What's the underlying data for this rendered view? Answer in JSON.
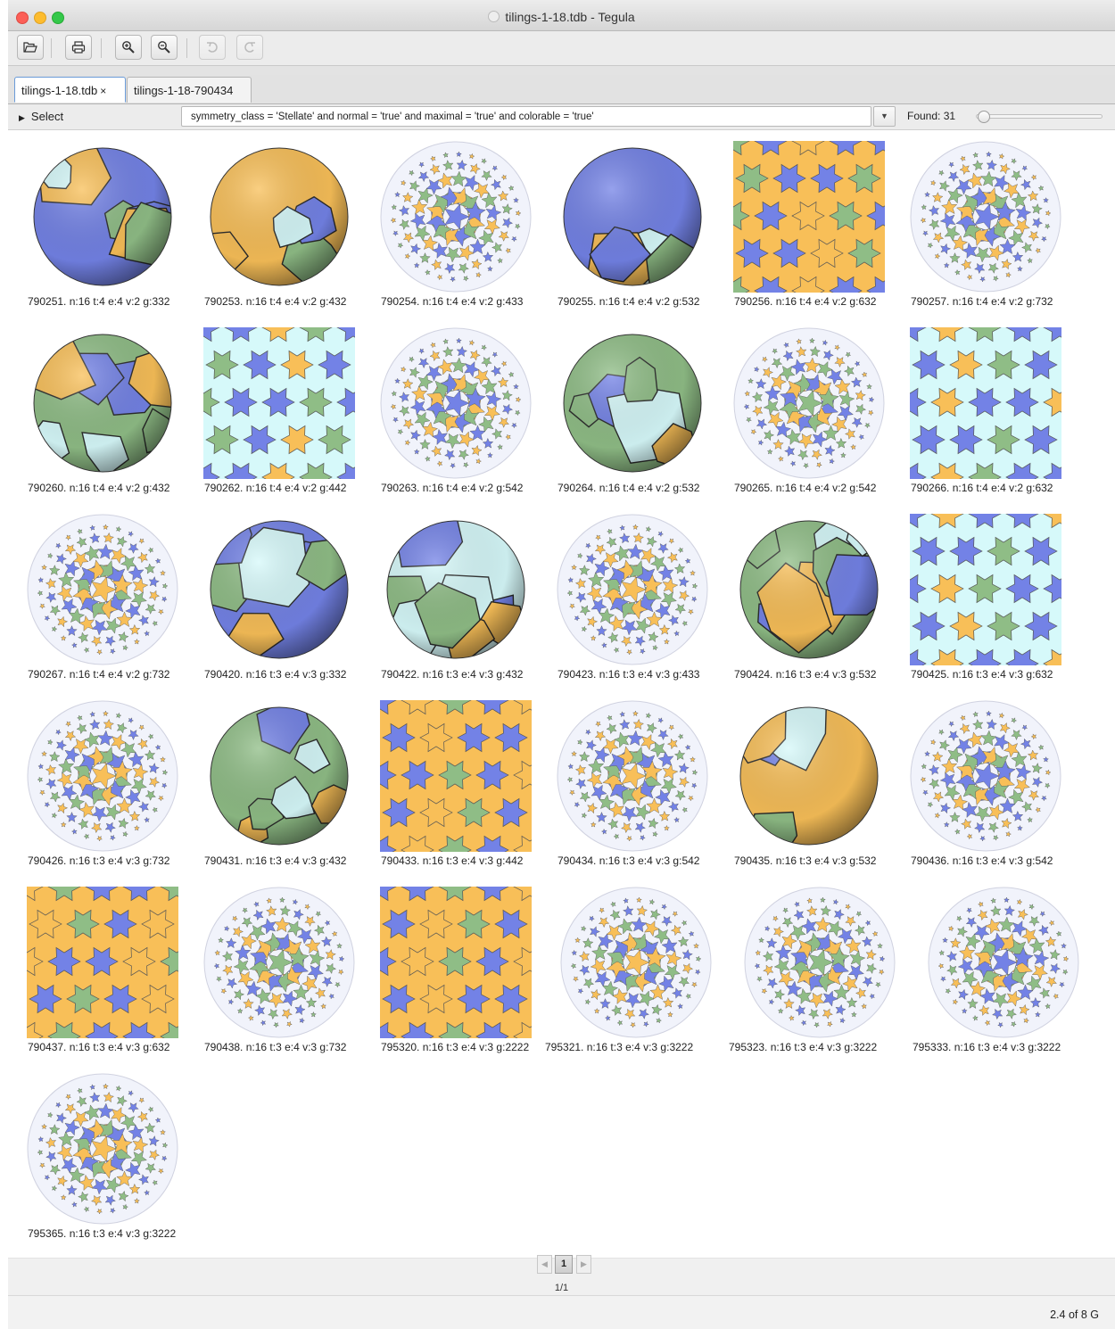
{
  "window": {
    "title": "tilings-1-18.tdb - Tegula"
  },
  "toolbar": {
    "buttons": [
      {
        "name": "open-button",
        "icon": "folder-icon",
        "enabled": true
      },
      {
        "name": "print-button",
        "icon": "printer-icon",
        "enabled": true
      },
      {
        "name": "zoom-in-button",
        "icon": "magnifier-plus-icon",
        "enabled": true
      },
      {
        "name": "zoom-out-button",
        "icon": "magnifier-minus-icon",
        "enabled": true
      },
      {
        "name": "undo-button",
        "icon": "undo-icon",
        "enabled": false
      },
      {
        "name": "redo-button",
        "icon": "redo-icon",
        "enabled": false
      }
    ]
  },
  "tabs": [
    {
      "label": "tilings-1-18.tdb",
      "active": true,
      "close": "×"
    },
    {
      "label": "tilings-1-18-790434",
      "active": false
    }
  ],
  "select_bar": {
    "toggle_label": "Select",
    "query": "symmetry_class = 'Stellate' and normal = 'true' and maximal = 'true' and colorable = 'true'",
    "found": "Found: 31"
  },
  "colors": {
    "orange": "#f8bf58",
    "green": "#8fbd86",
    "blue": "#7382e6",
    "cyan": "#d6f9fa",
    "disc": "#f1f3fb"
  },
  "tilings": [
    {
      "caption": "790251. n:16 t:4 e:4 v:2 g:332",
      "kind": "sphere"
    },
    {
      "caption": "790253. n:16 t:4 e:4 v:2 g:432",
      "kind": "sphere"
    },
    {
      "caption": "790254. n:16 t:4 e:4 v:2 g:433",
      "kind": "disc"
    },
    {
      "caption": "790255. n:16 t:4 e:4 v:2 g:532",
      "kind": "sphere"
    },
    {
      "caption": "790256. n:16 t:4 e:4 v:2 g:632",
      "kind": "square"
    },
    {
      "caption": "790257. n:16 t:4 e:4 v:2 g:732",
      "kind": "disc"
    },
    {
      "caption": "790260. n:16 t:4 e:4 v:2 g:432",
      "kind": "sphere"
    },
    {
      "caption": "790262. n:16 t:4 e:4 v:2 g:442",
      "kind": "square"
    },
    {
      "caption": "790263. n:16 t:4 e:4 v:2 g:542",
      "kind": "disc"
    },
    {
      "caption": "790264. n:16 t:4 e:4 v:2 g:532",
      "kind": "sphere"
    },
    {
      "caption": "790265. n:16 t:4 e:4 v:2 g:542",
      "kind": "disc"
    },
    {
      "caption": "790266. n:16 t:4 e:4 v:2 g:632",
      "kind": "square"
    },
    {
      "caption": "790267. n:16 t:4 e:4 v:2 g:732",
      "kind": "disc"
    },
    {
      "caption": "790420. n:16 t:3 e:4 v:3 g:332",
      "kind": "sphere"
    },
    {
      "caption": "790422. n:16 t:3 e:4 v:3 g:432",
      "kind": "sphere"
    },
    {
      "caption": "790423. n:16 t:3 e:4 v:3 g:433",
      "kind": "disc"
    },
    {
      "caption": "790424. n:16 t:3 e:4 v:3 g:532",
      "kind": "sphere"
    },
    {
      "caption": "790425. n:16 t:3 e:4 v:3 g:632",
      "kind": "square"
    },
    {
      "caption": "790426. n:16 t:3 e:4 v:3 g:732",
      "kind": "disc"
    },
    {
      "caption": "790431. n:16 t:3 e:4 v:3 g:432",
      "kind": "sphere"
    },
    {
      "caption": "790433. n:16 t:3 e:4 v:3 g:442",
      "kind": "square"
    },
    {
      "caption": "790434. n:16 t:3 e:4 v:3 g:542",
      "kind": "disc"
    },
    {
      "caption": "790435. n:16 t:3 e:4 v:3 g:532",
      "kind": "sphere"
    },
    {
      "caption": "790436. n:16 t:3 e:4 v:3 g:542",
      "kind": "disc"
    },
    {
      "caption": "790437. n:16 t:3 e:4 v:3 g:632",
      "kind": "square"
    },
    {
      "caption": "790438. n:16 t:3 e:4 v:3 g:732",
      "kind": "disc"
    },
    {
      "caption": "795320. n:16 t:3 e:4 v:3 g:2222",
      "kind": "square"
    },
    {
      "caption": "795321. n:16 t:3 e:4 v:3 g:3222",
      "kind": "disc"
    },
    {
      "caption": "795323. n:16 t:3 e:4 v:3 g:3222",
      "kind": "disc"
    },
    {
      "caption": "795333. n:16 t:3 e:4 v:3 g:3222",
      "kind": "disc"
    },
    {
      "caption": "795365. n:16 t:3 e:4 v:3 g:3222",
      "kind": "disc"
    }
  ],
  "pager": {
    "prev": "◀",
    "page": "1",
    "next": "▶",
    "info": "1/1"
  },
  "status": {
    "memory": "2.4 of 8 G"
  }
}
